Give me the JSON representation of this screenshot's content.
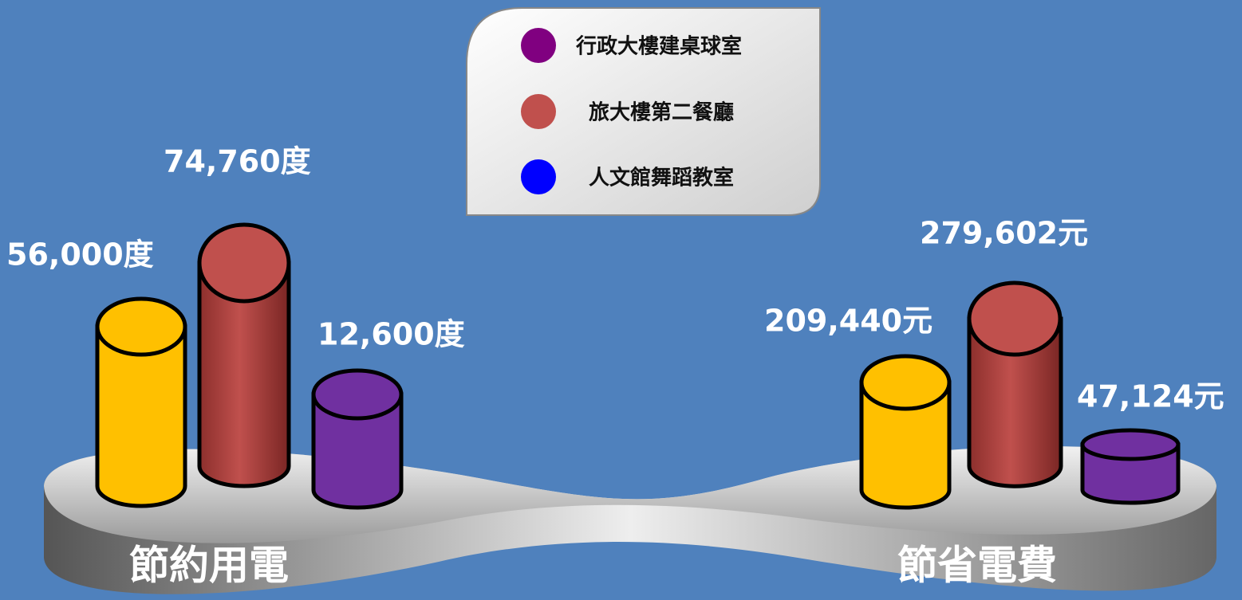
{
  "legend": {
    "items": [
      "行政大樓建桌球室",
      "旅大樓第二餐廳",
      "人文館舞蹈教室"
    ]
  },
  "groups": [
    {
      "title": "節約用電",
      "labels": [
        "56,000度",
        "74,760度",
        "12,600度"
      ]
    },
    {
      "title": "節省電費",
      "labels": [
        "209,440元",
        "279,602元",
        "47,124元"
      ]
    }
  ]
}
